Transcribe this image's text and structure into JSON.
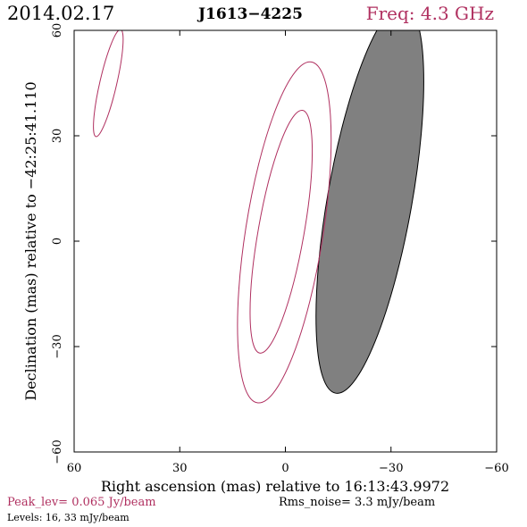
{
  "header": {
    "date": "2014.02.17",
    "source": "J1613−4225",
    "frequency": "Freq: 4.3 GHz"
  },
  "footer": {
    "peak": "Peak_lev=  0.065 Jy/beam",
    "rms": "Rms_noise=   3.3 mJy/beam",
    "levels": "Levels:  16,  33 mJy/beam"
  },
  "colors": {
    "contour": "#b03060",
    "beam_fill": "#808080",
    "frame": "#000000",
    "accent_text": "#b03060"
  },
  "chart_data": {
    "type": "contour",
    "xlabel": "Right ascension (mas) relative to 16:13:43.9972",
    "ylabel": "Declination (mas) relative to −42:25:41.110",
    "xlim": [
      60,
      -60
    ],
    "ylim": [
      -60,
      60
    ],
    "xticks": [
      60,
      30,
      0,
      -30,
      -60
    ],
    "yticks": [
      -60,
      -30,
      0,
      30,
      60
    ],
    "xtick_labels": [
      "60",
      "30",
      "0",
      "−30",
      "−60"
    ],
    "ytick_labels": [
      "−60",
      "−30",
      "0",
      "30",
      "60"
    ],
    "contours": [
      {
        "level": 16,
        "name": "source-outer-contour",
        "cx": 0.3,
        "cy": 2.5,
        "semi_major": 49,
        "semi_minor": 11,
        "angle_deg": 81
      },
      {
        "level": 33,
        "name": "source-inner-contour",
        "cx": 1.2,
        "cy": 2.7,
        "semi_major": 35,
        "semi_minor": 6.5,
        "angle_deg": 80
      },
      {
        "level": 16,
        "name": "corner-contour",
        "cx": 50.3,
        "cy": 45,
        "semi_major": 15.6,
        "semi_minor": 2.4,
        "angle_deg": 77
      }
    ],
    "beam": {
      "cx": -24,
      "cy": 12,
      "semi_major": 56,
      "semi_minor": 12,
      "angle_deg": 80
    }
  }
}
